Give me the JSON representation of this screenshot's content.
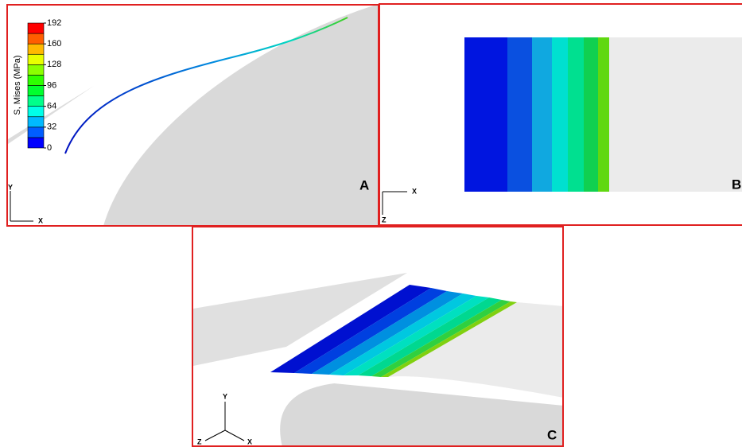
{
  "panels": [
    {
      "label": "A",
      "axes": [
        "Y",
        "X"
      ]
    },
    {
      "label": "B",
      "axes": [
        "X",
        "Z"
      ]
    },
    {
      "label": "C",
      "axes": [
        "Y",
        "Z",
        "X"
      ]
    }
  ],
  "legend": {
    "title": "S, Mises (MPa)",
    "ticks": [
      0,
      32,
      64,
      96,
      128,
      160,
      192
    ],
    "band_colors": [
      "#0000ff",
      "#005dff",
      "#00b9ff",
      "#00ffe8",
      "#00ff8b",
      "#00ff2e",
      "#2eff00",
      "#8bff00",
      "#e8ff00",
      "#ffb900",
      "#ff5d00",
      "#ff0000"
    ]
  }
}
